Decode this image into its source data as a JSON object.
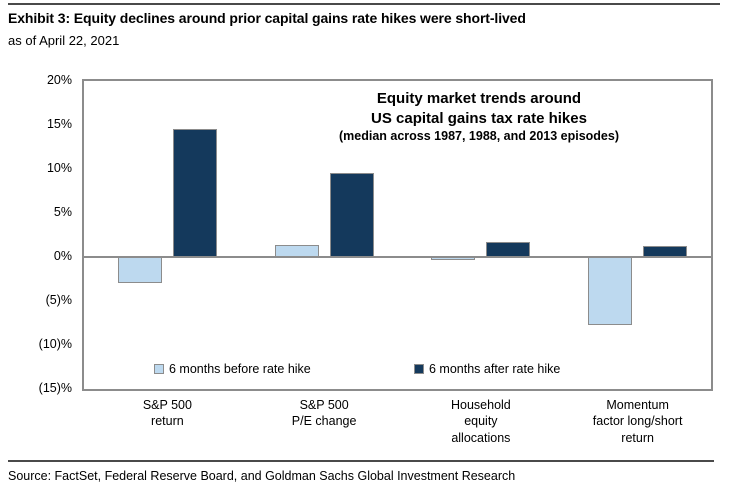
{
  "header": {
    "title": "Exhibit 3: Equity declines around prior capital gains rate hikes were short-lived",
    "subtitle": "as of April 22, 2021"
  },
  "chart_data": {
    "type": "bar",
    "title_lines": [
      "Equity market trends around",
      "US capital gains tax rate hikes",
      "(median across 1987, 1988, and 2013 episodes)"
    ],
    "categories": [
      "S&P 500\nreturn",
      "S&P 500\nP/E change",
      "Household\nequity\nallocations",
      "Momentum\nfactor long/short\nreturn"
    ],
    "series": [
      {
        "name": "6 months before rate hike",
        "color": "#bdd9ef",
        "values": [
          -3.0,
          1.4,
          -0.3,
          -7.7
        ]
      },
      {
        "name": "6 months after rate hike",
        "color": "#14395c",
        "values": [
          14.5,
          9.5,
          1.7,
          1.2
        ]
      }
    ],
    "ylim": [
      -15,
      20
    ],
    "ytick_step": 5,
    "ytick_labels": [
      "20%",
      "15%",
      "10%",
      "5%",
      "0%",
      "(5)%",
      "(10)%",
      "(15)%"
    ],
    "grid": false,
    "legend_position": "inside-bottom"
  },
  "footer": {
    "source": "Source: FactSet, Federal Reserve Board, and Goldman Sachs Global Investment Research"
  },
  "colors": {
    "before_bar": "#bdd9ef",
    "after_bar": "#14395c",
    "bar_border": "#8c8c8c",
    "plot_border": "#8c8c8c",
    "rule": "#4a4a4a",
    "text": "#000000"
  }
}
